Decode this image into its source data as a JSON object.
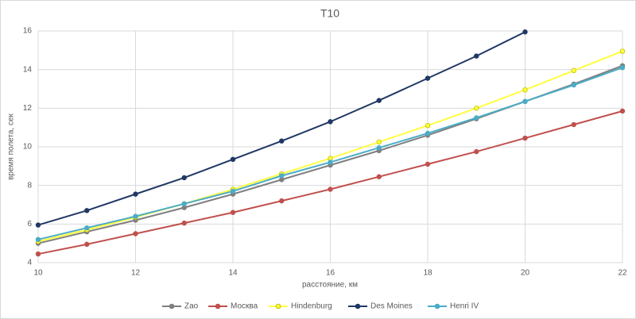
{
  "chart_data": {
    "type": "line",
    "title": "T10",
    "xlabel": "расстояние, км",
    "ylabel": "время полета, сек",
    "x": [
      10,
      11,
      12,
      13,
      14,
      15,
      16,
      17,
      18,
      19,
      20,
      21,
      22
    ],
    "series": [
      {
        "name": "Zao",
        "color": "#7f7f7f",
        "values": [
          5.0,
          5.6,
          6.2,
          6.85,
          7.55,
          8.3,
          9.05,
          9.8,
          10.6,
          11.45,
          12.35,
          13.25,
          14.2
        ]
      },
      {
        "name": "Москва",
        "color": "#c0504d",
        "values": [
          4.45,
          4.95,
          5.5,
          6.05,
          6.6,
          7.2,
          7.8,
          8.45,
          9.1,
          9.75,
          10.45,
          11.15,
          11.85
        ]
      },
      {
        "name": "Hindenburg",
        "color": "#ffff40",
        "values": [
          5.1,
          5.7,
          6.35,
          7.05,
          7.8,
          8.6,
          9.4,
          10.25,
          11.1,
          12.0,
          12.95,
          13.95,
          14.95
        ]
      },
      {
        "name": "Des Moines",
        "color": "#203864",
        "values": [
          5.95,
          6.7,
          7.55,
          8.4,
          9.35,
          10.3,
          11.3,
          12.4,
          13.55,
          14.7,
          15.95,
          null,
          null
        ]
      },
      {
        "name": "Henri IV",
        "color": "#4bacc6",
        "values": [
          5.2,
          5.8,
          6.4,
          7.05,
          7.7,
          8.5,
          9.2,
          9.95,
          10.7,
          11.5,
          12.35,
          13.2,
          14.1
        ]
      }
    ],
    "xlim": [
      10,
      22
    ],
    "xticks": [
      10,
      12,
      14,
      16,
      18,
      20,
      22
    ],
    "ylim": [
      4,
      16
    ],
    "yticks": [
      4,
      6,
      8,
      10,
      12,
      14,
      16
    ],
    "grid": true,
    "legend": "bottom"
  }
}
